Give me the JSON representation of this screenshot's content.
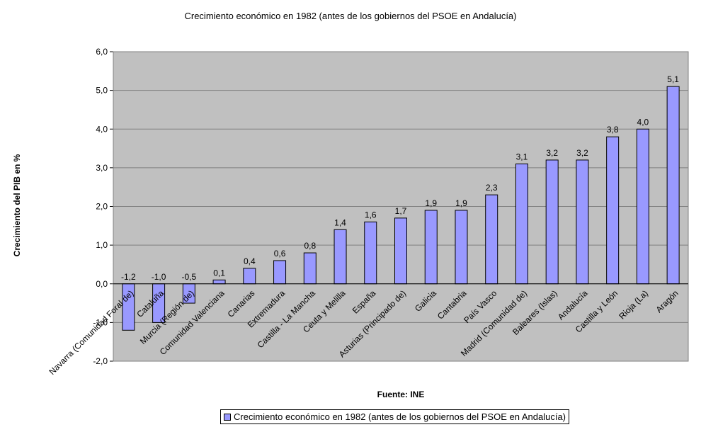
{
  "chart_data": {
    "type": "bar",
    "title": "Crecimiento económico en 1982 (antes de los gobiernos del PSOE en Andalucía)",
    "xlabel": "Fuente: INE",
    "ylabel": "Crecimiento del PIB en %",
    "ylim": [
      -2.0,
      6.0
    ],
    "yticks": [
      6.0,
      5.0,
      4.0,
      3.0,
      2.0,
      1.0,
      0.0,
      -1.0,
      -2.0
    ],
    "ytick_labels": [
      "6,0",
      "5,0",
      "4,0",
      "3,0",
      "2,0",
      "1,0",
      "0,0",
      "-1,0",
      "-2,0"
    ],
    "grid": true,
    "legend_position": "bottom",
    "categories": [
      "Navarra (Comunidad Foral de)",
      "Cataluña",
      "Murcia (Región de)",
      "Comunidad Valenciana",
      "Canarias",
      "Extremadura",
      "Castilla - La Mancha",
      "Ceuta y Melilla",
      "España",
      "Asturias (Principado de)",
      "Galicia",
      "Cantabria",
      "País Vasco",
      "Madrid (Comunidad de)",
      "Baleares (Islas)",
      "Andalucía",
      "Castilla y León",
      "Rioja (La)",
      "Aragón"
    ],
    "series": [
      {
        "name": "Crecimiento económico en 1982 (antes de los gobiernos del PSOE en Andalucía)",
        "color": "#9999ff",
        "values": [
          -1.2,
          -1.0,
          -0.5,
          0.1,
          0.4,
          0.6,
          0.8,
          1.4,
          1.6,
          1.7,
          1.9,
          1.9,
          2.3,
          3.1,
          3.2,
          3.2,
          3.8,
          4.0,
          5.1
        ],
        "data_labels": [
          "-1,2",
          "-1,0",
          "-0,5",
          "0,1",
          "0,4",
          "0,6",
          "0,8",
          "1,4",
          "1,6",
          "1,7",
          "1,9",
          "1,9",
          "2,3",
          "3,1",
          "3,2",
          "3,2",
          "3,8",
          "4,0",
          "5,1"
        ]
      }
    ],
    "plot_background": "#c0c0c0",
    "bar_color": "#9999ff"
  }
}
